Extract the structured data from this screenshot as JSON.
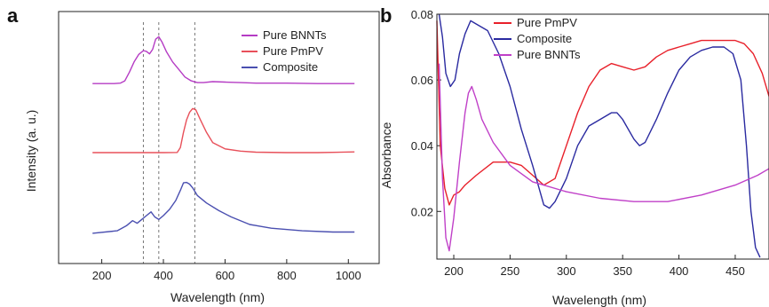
{
  "chart_data": [
    {
      "panel_label": "a",
      "type": "line",
      "xlabel": "Wavelength (nm)",
      "ylabel": "Intensity (a. u.)",
      "xlim": [
        60,
        1100
      ],
      "x_ticks": [
        200,
        400,
        600,
        800,
        1000
      ],
      "y_ticks": [],
      "ylim": [
        0,
        1
      ],
      "reference_lines_x": [
        335,
        385,
        502
      ],
      "legend_position": "top-right",
      "grid": false,
      "series": [
        {
          "name": "Pure BNNTs",
          "color": "#b53cc4",
          "x": [
            170,
            240,
            260,
            275,
            290,
            305,
            320,
            335,
            345,
            355,
            365,
            375,
            385,
            395,
            410,
            430,
            450,
            470,
            490,
            510,
            530,
            560,
            600,
            650,
            700,
            800,
            900,
            1020
          ],
          "y": [
            0.714,
            0.714,
            0.716,
            0.725,
            0.76,
            0.8,
            0.83,
            0.845,
            0.842,
            0.832,
            0.85,
            0.89,
            0.9,
            0.88,
            0.84,
            0.8,
            0.77,
            0.74,
            0.725,
            0.718,
            0.718,
            0.722,
            0.72,
            0.718,
            0.716,
            0.716,
            0.714,
            0.714
          ]
        },
        {
          "name": "Pure PmPV",
          "color": "#e8505a",
          "x": [
            170,
            300,
            400,
            445,
            455,
            465,
            475,
            485,
            495,
            505,
            520,
            540,
            560,
            600,
            650,
            700,
            800,
            900,
            1020
          ],
          "y": [
            0.44,
            0.44,
            0.44,
            0.441,
            0.46,
            0.52,
            0.57,
            0.6,
            0.615,
            0.61,
            0.57,
            0.52,
            0.48,
            0.455,
            0.446,
            0.442,
            0.44,
            0.44,
            0.443
          ]
        },
        {
          "name": "Composite",
          "color": "#4a4fb0",
          "x": [
            170,
            250,
            280,
            300,
            315,
            330,
            345,
            360,
            372,
            385,
            400,
            420,
            440,
            455,
            465,
            475,
            485,
            495,
            510,
            540,
            580,
            620,
            680,
            750,
            850,
            950,
            1020
          ],
          "y": [
            0.12,
            0.13,
            0.15,
            0.17,
            0.16,
            0.175,
            0.19,
            0.205,
            0.185,
            0.175,
            0.19,
            0.215,
            0.25,
            0.29,
            0.32,
            0.322,
            0.315,
            0.3,
            0.27,
            0.24,
            0.21,
            0.185,
            0.155,
            0.14,
            0.13,
            0.125,
            0.125
          ]
        }
      ]
    },
    {
      "panel_label": "b",
      "type": "line",
      "xlabel": "Wavelength (nm)",
      "ylabel": "Absorbance",
      "xlim": [
        185,
        480
      ],
      "ylim": [
        0.0055,
        0.08
      ],
      "x_ticks": [
        200,
        250,
        300,
        350,
        400,
        450
      ],
      "y_ticks": [
        0.02,
        0.04,
        0.06,
        0.08
      ],
      "legend_position": "top",
      "grid": false,
      "series": [
        {
          "name": "Pure PmPV",
          "color": "#e8202a",
          "x": [
            185,
            188,
            192,
            196,
            200,
            205,
            210,
            220,
            235,
            250,
            260,
            270,
            280,
            290,
            300,
            310,
            320,
            330,
            340,
            350,
            360,
            370,
            380,
            390,
            400,
            410,
            420,
            430,
            440,
            450,
            458,
            466,
            474,
            480
          ],
          "y": [
            0.078,
            0.04,
            0.027,
            0.022,
            0.025,
            0.026,
            0.028,
            0.031,
            0.035,
            0.035,
            0.034,
            0.031,
            0.028,
            0.03,
            0.04,
            0.05,
            0.058,
            0.063,
            0.065,
            0.064,
            0.063,
            0.064,
            0.067,
            0.069,
            0.07,
            0.071,
            0.072,
            0.072,
            0.072,
            0.072,
            0.071,
            0.068,
            0.062,
            0.055
          ]
        },
        {
          "name": "Composite",
          "color": "#2a2aa0",
          "x": [
            187,
            190,
            193,
            197,
            201,
            205,
            210,
            215,
            220,
            230,
            240,
            250,
            260,
            270,
            280,
            285,
            290,
            300,
            310,
            320,
            330,
            340,
            345,
            350,
            360,
            365,
            370,
            380,
            390,
            400,
            410,
            420,
            430,
            440,
            448,
            455,
            460,
            464,
            468,
            472
          ],
          "y": [
            0.08,
            0.073,
            0.062,
            0.058,
            0.06,
            0.068,
            0.074,
            0.078,
            0.077,
            0.075,
            0.068,
            0.058,
            0.045,
            0.034,
            0.022,
            0.021,
            0.023,
            0.03,
            0.04,
            0.046,
            0.048,
            0.05,
            0.05,
            0.048,
            0.042,
            0.04,
            0.041,
            0.048,
            0.056,
            0.063,
            0.067,
            0.069,
            0.07,
            0.07,
            0.068,
            0.06,
            0.04,
            0.02,
            0.009,
            0.006
          ]
        },
        {
          "name": "Pure BNNTs",
          "color": "#c040c8",
          "x": [
            187,
            190,
            193,
            196,
            200,
            205,
            210,
            213,
            216,
            220,
            225,
            235,
            250,
            270,
            300,
            330,
            360,
            390,
            420,
            450,
            470,
            480
          ],
          "y": [
            0.065,
            0.03,
            0.012,
            0.008,
            0.018,
            0.035,
            0.05,
            0.056,
            0.058,
            0.054,
            0.048,
            0.041,
            0.034,
            0.029,
            0.026,
            0.024,
            0.023,
            0.023,
            0.025,
            0.028,
            0.031,
            0.033
          ]
        }
      ]
    }
  ]
}
